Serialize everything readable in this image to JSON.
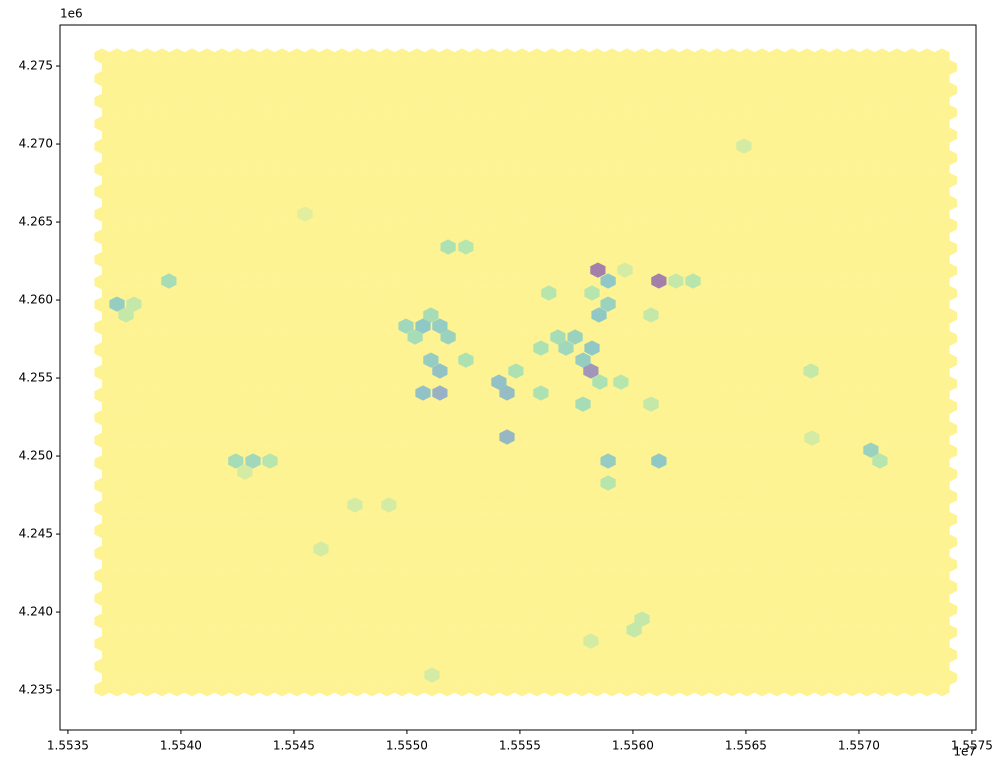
{
  "chart_data": {
    "type": "hexbin",
    "cmap": "viridis_r",
    "alpha": 0.5,
    "x_offset_label": "1e7",
    "y_offset_label": "1e6",
    "xlim": [
      15534650,
      15575180
    ],
    "ylim": [
      4232440,
      4277630
    ],
    "xticks": [
      {
        "value": 15535000,
        "label": "1.5535"
      },
      {
        "value": 15540000,
        "label": "1.5540"
      },
      {
        "value": 15545000,
        "label": "1.5545"
      },
      {
        "value": 15550000,
        "label": "1.5550"
      },
      {
        "value": 15555000,
        "label": "1.5555"
      },
      {
        "value": 15560000,
        "label": "1.5560"
      },
      {
        "value": 15565000,
        "label": "1.5565"
      },
      {
        "value": 15570000,
        "label": "1.5570"
      },
      {
        "value": 15575000,
        "label": "1.5575"
      }
    ],
    "yticks": [
      {
        "value": 4235000,
        "label": "4.235"
      },
      {
        "value": 4240000,
        "label": "4.240"
      },
      {
        "value": 4245000,
        "label": "4.245"
      },
      {
        "value": 4250000,
        "label": "4.250"
      },
      {
        "value": 4255000,
        "label": "4.255"
      },
      {
        "value": 4260000,
        "label": "4.260"
      },
      {
        "value": 4265000,
        "label": "4.265"
      },
      {
        "value": 4270000,
        "label": "4.270"
      },
      {
        "value": 4275000,
        "label": "4.275"
      }
    ],
    "x": [
      15537170,
      15537920,
      15537570,
      15539470,
      15542430,
      15543190,
      15543940,
      15542830,
      15558450,
      15558900,
      15561150,
      15558140,
      15554430,
      15551460,
      15550710,
      15554430,
      15554070,
      15558900,
      15561150,
      15570530,
      15570930,
      15567880,
      15549960,
      15550710,
      15551060,
      15551460,
      15550360,
      15551820,
      15551060,
      15551460,
      15552610,
      15558500,
      15558900,
      15558190,
      15557790,
      15557040,
      15557440,
      15556680,
      15555930,
      15556280,
      15558190,
      15557790,
      15554820,
      15555930,
      15552610,
      15551820,
      15558540,
      15559470,
      15560800,
      15562660,
      15561900,
      15560800,
      15558900,
      15545490,
      15547700,
      15549200,
      15546200,
      15560400,
      15560050,
      15558140,
      15551110,
      15567920,
      15564910,
      15559650
    ],
    "y": [
      4259740,
      4259740,
      4259040,
      4261220,
      4249680,
      4249680,
      4249680,
      4248970,
      4261920,
      4261220,
      4261220,
      4255450,
      4251220,
      4254040,
      4254040,
      4254040,
      4254740,
      4249680,
      4249680,
      4250380,
      4249680,
      4255450,
      4258330,
      4258330,
      4259040,
      4258330,
      4257630,
      4257630,
      4256150,
      4255450,
      4256150,
      4259040,
      4259740,
      4256920,
      4256150,
      4256920,
      4257630,
      4257630,
      4256920,
      4260450,
      4260450,
      4253330,
      4255450,
      4254040,
      4263400,
      4263400,
      4254740,
      4254740,
      4253330,
      4261220,
      4261220,
      4259040,
      4248270,
      4265510,
      4246860,
      4246860,
      4244040,
      4239550,
      4238850,
      4238140,
      4235960,
      4251150,
      4269870,
      4261920
    ],
    "counts": [
      10,
      4,
      4,
      7,
      7,
      8,
      5,
      3,
      22,
      11,
      22,
      19,
      14,
      15,
      12,
      13,
      12,
      10,
      11,
      9,
      5,
      4,
      8,
      11,
      7,
      10,
      7,
      9,
      10,
      12,
      6,
      11,
      9,
      11,
      10,
      8,
      9,
      7,
      6,
      5,
      5,
      7,
      6,
      6,
      5,
      6,
      6,
      5,
      4,
      5,
      4,
      4,
      5,
      2,
      3,
      3,
      3,
      4,
      4,
      3,
      3,
      3,
      3,
      3
    ]
  }
}
